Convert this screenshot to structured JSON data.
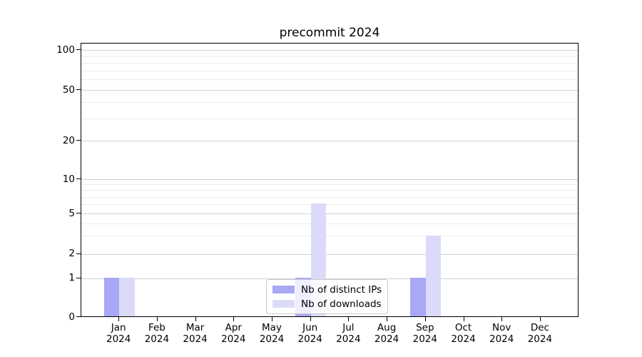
{
  "figure": {
    "title": "precommit 2024"
  },
  "chart_data": {
    "type": "bar",
    "title": "precommit 2024",
    "categories": [
      "Jan 2024",
      "Feb 2024",
      "Mar 2024",
      "Apr 2024",
      "May 2024",
      "Jun 2024",
      "Jul 2024",
      "Aug 2024",
      "Sep 2024",
      "Oct 2024",
      "Nov 2024",
      "Dec 2024"
    ],
    "series": [
      {
        "name": "Nb of distinct IPs",
        "color": "#a8a8f5",
        "values": [
          1,
          0,
          0,
          0,
          0,
          1,
          0,
          0,
          1,
          0,
          0,
          0
        ]
      },
      {
        "name": "Nb of downloads",
        "color": "#dbdbf9",
        "values": [
          1,
          0,
          0,
          0,
          0,
          6,
          0,
          0,
          3,
          0,
          0,
          0
        ]
      }
    ],
    "xlabel": "",
    "ylabel": "",
    "y_axis": {
      "scale": "symlog",
      "ticks": [
        0,
        1,
        2,
        5,
        10,
        20,
        50,
        100
      ],
      "minor_gridlines": [
        3,
        4,
        6,
        7,
        8,
        9,
        30,
        40,
        60,
        70,
        80,
        90
      ],
      "ylim": [
        0,
        112
      ]
    },
    "grid": "on",
    "legend": {
      "position": "lower center",
      "entries": [
        "Nb of distinct IPs",
        "Nb of downloads"
      ]
    }
  },
  "colors": {
    "distinct_ips": "#a8a8f5",
    "downloads": "#dbdbf9",
    "major_gridline": "#d2d2d2",
    "minor_gridline": "#ebebeb",
    "axis": "#000000",
    "background": "#ffffff"
  }
}
